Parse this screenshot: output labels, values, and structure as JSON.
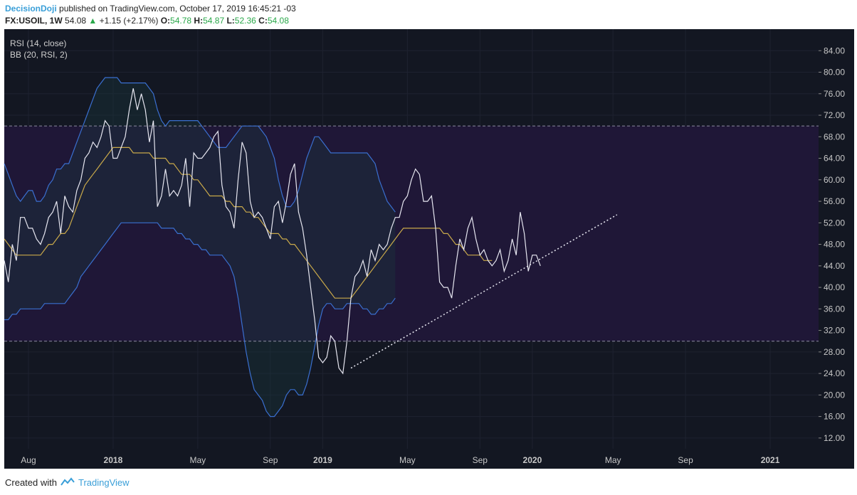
{
  "header": {
    "author": "DecisionDoji",
    "published_text": "published on TradingView.com, October 17, 2019 16:45:21 -03",
    "symbol": "FX:USOIL, 1W",
    "last": "54.08",
    "change": "+1.15 (+2.17%)",
    "o_label": "O:",
    "o_value": "54.78",
    "h_label": "H:",
    "h_value": "54.87",
    "l_label": "L:",
    "l_value": "52.36",
    "c_label": "C:",
    "c_value": "54.08",
    "up_arrow": "▲"
  },
  "footer": {
    "created_with": "Created with",
    "brand": "TradingView",
    "logo_icon": "tradingview-cloud-icon"
  },
  "colors": {
    "background": "#131722",
    "band_fill": "#1f1737",
    "grid": "#1e2230",
    "rsi_line": "#e6e6f0",
    "bb_upper_lower": "#3a6fd0",
    "bb_basis": "#c9a94a",
    "trendline": "#e6e6f0",
    "level_line": "#8c8ca0",
    "axis_text": "#c8c8c8"
  },
  "chart_data": {
    "type": "line",
    "title": "FX:USOIL, 1W",
    "indicator_labels": [
      "RSI (14, close)",
      "BB (20, RSI, 2)"
    ],
    "ylim": [
      10,
      88
    ],
    "y_ticks": [
      12.0,
      16.0,
      20.0,
      24.0,
      28.0,
      32.0,
      36.0,
      40.0,
      44.0,
      48.0,
      52.0,
      56.0,
      60.0,
      64.0,
      68.0,
      72.0,
      76.0,
      80.0,
      84.0
    ],
    "y_tick_labels": [
      "12.00",
      "16.00",
      "20.00",
      "24.00",
      "28.00",
      "32.00",
      "36.00",
      "40.00",
      "44.00",
      "48.00",
      "52.00",
      "56.00",
      "60.00",
      "64.00",
      "68.00",
      "72.00",
      "76.00",
      "80.00",
      "84.00"
    ],
    "x_ticks": [
      {
        "label": "Aug",
        "week": 3,
        "bold": false
      },
      {
        "label": "2018",
        "week": 24,
        "bold": true
      },
      {
        "label": "May",
        "week": 45,
        "bold": false
      },
      {
        "label": "Sep",
        "week": 63,
        "bold": false
      },
      {
        "label": "2019",
        "week": 76,
        "bold": true
      },
      {
        "label": "May",
        "week": 97,
        "bold": false
      },
      {
        "label": "Sep",
        "week": 115,
        "bold": false
      },
      {
        "label": "2020",
        "week": 128,
        "bold": true
      },
      {
        "label": "May",
        "week": 148,
        "bold": false
      },
      {
        "label": "Sep",
        "week": 166,
        "bold": false
      },
      {
        "label": "2021",
        "week": 187,
        "bold": true
      }
    ],
    "x_range_weeks": [
      -3,
      199
    ],
    "levels": [
      30,
      70
    ],
    "series": [
      {
        "name": "RSI (14, close)",
        "x_start_week": -3,
        "values": [
          45,
          41,
          48,
          45,
          53,
          53,
          51,
          51,
          49,
          48,
          50,
          53,
          54,
          56,
          50,
          57,
          55,
          54,
          58,
          60,
          64,
          65,
          67,
          66,
          68,
          71,
          70,
          64,
          64,
          66,
          68,
          73,
          77,
          73,
          76,
          73,
          67,
          71,
          55,
          57,
          62,
          57,
          58,
          57,
          59,
          64,
          55,
          65,
          64,
          64,
          65,
          66,
          68,
          69,
          59,
          55,
          54,
          51,
          60,
          67,
          65,
          56,
          53,
          54,
          53,
          51,
          49,
          55,
          56,
          52,
          56,
          61,
          63,
          54,
          51,
          46,
          40,
          34,
          27,
          26,
          27,
          31,
          30,
          25,
          24,
          30,
          38,
          42,
          43,
          45,
          42,
          47,
          45,
          48,
          47,
          48,
          51,
          53,
          53,
          56,
          57,
          60,
          62,
          61,
          56,
          56,
          57,
          51,
          41,
          40,
          40,
          38,
          44,
          49,
          47,
          51,
          53,
          49,
          46,
          47,
          45,
          44,
          45,
          47,
          43,
          45,
          49,
          46,
          54,
          50,
          43,
          46,
          46,
          44
        ],
        "color": "#e6e6f0"
      },
      {
        "name": "BB basis",
        "x_start_week": -3,
        "values": [
          49,
          48,
          47,
          46,
          46,
          46,
          46,
          46,
          46,
          46,
          47,
          48,
          48,
          49,
          50,
          50,
          51,
          53,
          55,
          57,
          59,
          60,
          61,
          62,
          63,
          64,
          65,
          66,
          66,
          66,
          66,
          66,
          65,
          65,
          65,
          65,
          65,
          64,
          64,
          64,
          64,
          63,
          63,
          62,
          61,
          61,
          61,
          60,
          60,
          59,
          58,
          57,
          57,
          57,
          57,
          56,
          56,
          55,
          55,
          55,
          54,
          54,
          53,
          53,
          52,
          51,
          50,
          50,
          50,
          49,
          49,
          48,
          48,
          47,
          46,
          45,
          44,
          43,
          42,
          41,
          40,
          39,
          38,
          38,
          38,
          38,
          38,
          39,
          40,
          41,
          42,
          43,
          44,
          45,
          46,
          47,
          48,
          49,
          50,
          51,
          51,
          51,
          51,
          51,
          51,
          51,
          51,
          51,
          51,
          50,
          50,
          49,
          48,
          48,
          47,
          46,
          46,
          46,
          46,
          45,
          45,
          45
        ],
        "color": "#c9a94a"
      },
      {
        "name": "BB upper",
        "x_start_week": -3,
        "values": [
          63,
          61,
          59,
          57,
          56,
          57,
          58,
          58,
          56,
          56,
          57,
          59,
          60,
          62,
          62,
          63,
          63,
          65,
          67,
          69,
          71,
          73,
          75,
          77,
          78,
          79,
          79,
          79,
          79,
          78,
          78,
          78,
          78,
          78,
          78,
          78,
          77,
          76,
          73,
          71,
          70,
          71,
          71,
          71,
          71,
          71,
          71,
          71,
          71,
          70,
          69,
          68,
          67,
          66,
          66,
          66,
          67,
          68,
          69,
          70,
          70,
          70,
          70,
          70,
          69,
          68,
          66,
          64,
          60,
          57,
          55,
          55,
          56,
          58,
          61,
          64,
          66,
          68,
          68,
          67,
          66,
          65,
          65,
          65,
          65,
          65,
          65,
          65,
          65,
          65,
          65,
          64,
          63,
          60,
          58,
          56,
          55,
          54
        ],
        "color": "#3a6fd0"
      },
      {
        "name": "BB lower",
        "x_start_week": -3,
        "values": [
          34,
          34,
          35,
          35,
          36,
          36,
          36,
          36,
          36,
          36,
          37,
          37,
          37,
          37,
          37,
          37,
          38,
          39,
          40,
          42,
          43,
          44,
          45,
          46,
          47,
          48,
          49,
          50,
          51,
          52,
          52,
          52,
          52,
          52,
          52,
          52,
          52,
          52,
          52,
          51,
          51,
          51,
          51,
          50,
          50,
          49,
          49,
          48,
          48,
          47,
          47,
          46,
          46,
          46,
          46,
          45,
          44,
          42,
          38,
          33,
          28,
          24,
          21,
          20,
          19,
          17,
          16,
          16,
          17,
          18,
          20,
          21,
          21,
          20,
          20,
          22,
          25,
          29,
          33,
          36,
          37,
          37,
          36,
          36,
          36,
          37,
          37,
          37,
          37,
          36,
          36,
          35,
          35,
          36,
          36,
          37,
          37,
          38
        ],
        "color": "#3a6fd0"
      },
      {
        "name": "trendline",
        "points": [
          [
            83,
            25
          ],
          [
            149,
            53.5
          ]
        ],
        "color": "#e6e6f0"
      }
    ]
  }
}
